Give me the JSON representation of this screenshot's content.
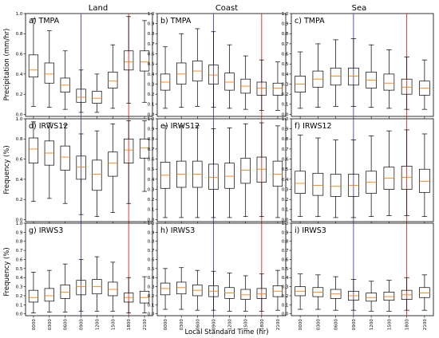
{
  "figure": {
    "column_titles": [
      "Land",
      "Coast",
      "Sea"
    ],
    "xlabel": "Local Standard Time (hr)",
    "row_ylabels": [
      "Precipitation (mm/hr)",
      "Frequency (%)",
      "Frequency (%)"
    ],
    "x_ticks": [
      "0000",
      "0300",
      "0600",
      "0900",
      "1200",
      "1500",
      "1800",
      "2100"
    ],
    "vline_colors": {
      "blue": "#3d47a4",
      "red": "#d62728"
    },
    "median_color": "#ff7f0e",
    "box_color": "#000000"
  },
  "chart_data": [
    {
      "type": "box",
      "title": "a) TMPA",
      "ylim": [
        -0.02,
        1.0
      ],
      "yticks": [
        0.0,
        0.2,
        0.4,
        0.6,
        0.8,
        1.0
      ],
      "yticklabels": [
        "0.0",
        "0.2",
        "0.4",
        "0.6",
        "0.8",
        "1.0"
      ],
      "categories": [
        "0000",
        "0300",
        "0600",
        "0900",
        "1200",
        "1500",
        "1800",
        "2100"
      ],
      "vlines": [
        {
          "x": "0900",
          "color": "blue"
        },
        {
          "x": "1800",
          "color": "red"
        }
      ],
      "boxes": [
        {
          "whislo": 0.08,
          "q1": 0.37,
          "med": 0.44,
          "q3": 0.59,
          "whishi": 0.95
        },
        {
          "whislo": 0.07,
          "q1": 0.31,
          "med": 0.4,
          "q3": 0.51,
          "whishi": 0.83
        },
        {
          "whislo": 0.05,
          "q1": 0.22,
          "med": 0.29,
          "q3": 0.36,
          "whishi": 0.63
        },
        {
          "whislo": 0.02,
          "q1": 0.12,
          "med": 0.17,
          "q3": 0.25,
          "whishi": 0.44
        },
        {
          "whislo": 0.02,
          "q1": 0.11,
          "med": 0.16,
          "q3": 0.23,
          "whishi": 0.4
        },
        {
          "whislo": 0.06,
          "q1": 0.26,
          "med": 0.33,
          "q3": 0.42,
          "whishi": 0.69
        },
        {
          "whislo": 0.11,
          "q1": 0.44,
          "med": 0.52,
          "q3": 0.63,
          "whishi": 0.97
        },
        {
          "whislo": 0.12,
          "q1": 0.43,
          "med": 0.52,
          "q3": 0.63,
          "whishi": 0.93
        }
      ]
    },
    {
      "type": "box",
      "title": "b) TMPA",
      "ylim": [
        -0.02,
        1.0
      ],
      "yticks": [
        0.0,
        0.1,
        0.2,
        0.3,
        0.4,
        0.5,
        0.6,
        0.7,
        0.8,
        0.9,
        1.0
      ],
      "yticklabels": [
        "0.0",
        "0.1",
        "0.2",
        "0.3",
        "0.4",
        "0.5",
        "0.6",
        "0.7",
        "0.8",
        "0.9",
        "1.0"
      ],
      "categories": [
        "0000",
        "0300",
        "0600",
        "0900",
        "1200",
        "1500",
        "1800",
        "2100"
      ],
      "vlines": [
        {
          "x": "0900",
          "color": "blue"
        },
        {
          "x": "1800",
          "color": "red"
        }
      ],
      "boxes": [
        {
          "whislo": 0.06,
          "q1": 0.24,
          "med": 0.32,
          "q3": 0.4,
          "whishi": 0.67
        },
        {
          "whislo": 0.07,
          "q1": 0.3,
          "med": 0.4,
          "q3": 0.51,
          "whishi": 0.8
        },
        {
          "whislo": 0.08,
          "q1": 0.33,
          "med": 0.43,
          "q3": 0.53,
          "whishi": 0.85
        },
        {
          "whislo": 0.07,
          "q1": 0.3,
          "med": 0.39,
          "q3": 0.49,
          "whishi": 0.82
        },
        {
          "whislo": 0.06,
          "q1": 0.24,
          "med": 0.32,
          "q3": 0.41,
          "whishi": 0.69
        },
        {
          "whislo": 0.05,
          "q1": 0.21,
          "med": 0.28,
          "q3": 0.35,
          "whishi": 0.58
        },
        {
          "whislo": 0.04,
          "q1": 0.19,
          "med": 0.26,
          "q3": 0.32,
          "whishi": 0.54
        },
        {
          "whislo": 0.04,
          "q1": 0.19,
          "med": 0.26,
          "q3": 0.31,
          "whishi": 0.52
        }
      ]
    },
    {
      "type": "box",
      "title": "c) TMPA",
      "ylim": [
        -0.02,
        1.0
      ],
      "yticks": [
        0.0,
        0.1,
        0.2,
        0.3,
        0.4,
        0.5,
        0.6,
        0.7,
        0.8,
        0.9,
        1.0
      ],
      "yticklabels": [
        "0.0",
        "0.1",
        "0.2",
        "0.3",
        "0.4",
        "0.5",
        "0.6",
        "0.7",
        "0.8",
        "0.9",
        "1.0"
      ],
      "categories": [
        "0000",
        "0300",
        "0600",
        "0900",
        "1200",
        "1500",
        "1800",
        "2100"
      ],
      "vlines": [
        {
          "x": "0900",
          "color": "blue"
        },
        {
          "x": "1800",
          "color": "red"
        }
      ],
      "boxes": [
        {
          "whislo": 0.06,
          "q1": 0.22,
          "med": 0.3,
          "q3": 0.38,
          "whishi": 0.62
        },
        {
          "whislo": 0.07,
          "q1": 0.27,
          "med": 0.35,
          "q3": 0.43,
          "whishi": 0.7
        },
        {
          "whislo": 0.08,
          "q1": 0.29,
          "med": 0.38,
          "q3": 0.46,
          "whishi": 0.74
        },
        {
          "whislo": 0.08,
          "q1": 0.29,
          "med": 0.38,
          "q3": 0.46,
          "whishi": 0.75
        },
        {
          "whislo": 0.07,
          "q1": 0.26,
          "med": 0.34,
          "q3": 0.42,
          "whishi": 0.69
        },
        {
          "whislo": 0.06,
          "q1": 0.24,
          "med": 0.31,
          "q3": 0.4,
          "whishi": 0.64
        },
        {
          "whislo": 0.05,
          "q1": 0.2,
          "med": 0.27,
          "q3": 0.35,
          "whishi": 0.57
        },
        {
          "whislo": 0.05,
          "q1": 0.19,
          "med": 0.26,
          "q3": 0.33,
          "whishi": 0.54
        }
      ]
    },
    {
      "type": "box",
      "title": "d) IRWS12",
      "ylim": [
        -0.02,
        1.0
      ],
      "yticks": [
        0.0,
        0.2,
        0.4,
        0.6,
        0.8,
        1.0
      ],
      "yticklabels": [
        "0.0",
        "0.2",
        "0.4",
        "0.6",
        "0.8",
        "1.0"
      ],
      "categories": [
        "0000",
        "0300",
        "0600",
        "0900",
        "1200",
        "1500",
        "1800",
        "2100"
      ],
      "vlines": [
        {
          "x": "0900",
          "color": "blue"
        },
        {
          "x": "1800",
          "color": "red"
        }
      ],
      "boxes": [
        {
          "whislo": 0.18,
          "q1": 0.56,
          "med": 0.7,
          "q3": 0.81,
          "whishi": 0.97
        },
        {
          "whislo": 0.21,
          "q1": 0.54,
          "med": 0.66,
          "q3": 0.78,
          "whishi": 0.96
        },
        {
          "whislo": 0.16,
          "q1": 0.49,
          "med": 0.62,
          "q3": 0.73,
          "whishi": 0.94
        },
        {
          "whislo": 0.05,
          "q1": 0.4,
          "med": 0.52,
          "q3": 0.63,
          "whishi": 0.85
        },
        {
          "whislo": 0.03,
          "q1": 0.29,
          "med": 0.45,
          "q3": 0.59,
          "whishi": 0.88
        },
        {
          "whislo": 0.07,
          "q1": 0.43,
          "med": 0.56,
          "q3": 0.67,
          "whishi": 0.95
        },
        {
          "whislo": 0.16,
          "q1": 0.56,
          "med": 0.69,
          "q3": 0.8,
          "whishi": 0.98
        },
        {
          "whislo": 0.28,
          "q1": 0.61,
          "med": 0.71,
          "q3": 0.8,
          "whishi": 0.98
        }
      ]
    },
    {
      "type": "box",
      "title": "e) IRWS12",
      "ylim": [
        -0.02,
        1.0
      ],
      "yticks": [
        0.0,
        0.1,
        0.2,
        0.3,
        0.4,
        0.5,
        0.6,
        0.7,
        0.8,
        0.9,
        1.0
      ],
      "yticklabels": [
        "0.0",
        "0.1",
        "0.2",
        "0.3",
        "0.4",
        "0.5",
        "0.6",
        "0.7",
        "0.8",
        "0.9",
        "1.0"
      ],
      "categories": [
        "0000",
        "0300",
        "0600",
        "0900",
        "1200",
        "1500",
        "1800",
        "2100"
      ],
      "vlines": [
        {
          "x": "0900",
          "color": "blue"
        },
        {
          "x": "1800",
          "color": "red"
        }
      ],
      "boxes": [
        {
          "whislo": 0.02,
          "q1": 0.31,
          "med": 0.44,
          "q3": 0.57,
          "whishi": 0.93
        },
        {
          "whislo": 0.02,
          "q1": 0.32,
          "med": 0.45,
          "q3": 0.58,
          "whishi": 0.93
        },
        {
          "whislo": 0.02,
          "q1": 0.32,
          "med": 0.45,
          "q3": 0.58,
          "whishi": 0.93
        },
        {
          "whislo": 0.02,
          "q1": 0.3,
          "med": 0.42,
          "q3": 0.55,
          "whishi": 0.9
        },
        {
          "whislo": 0.02,
          "q1": 0.31,
          "med": 0.43,
          "q3": 0.56,
          "whishi": 0.91
        },
        {
          "whislo": 0.03,
          "q1": 0.36,
          "med": 0.49,
          "q3": 0.61,
          "whishi": 0.95
        },
        {
          "whislo": 0.03,
          "q1": 0.37,
          "med": 0.5,
          "q3": 0.62,
          "whishi": 0.96
        },
        {
          "whislo": 0.02,
          "q1": 0.33,
          "med": 0.45,
          "q3": 0.58,
          "whishi": 0.93
        }
      ]
    },
    {
      "type": "box",
      "title": "f) IRWS12",
      "ylim": [
        -0.02,
        1.0
      ],
      "yticks": [
        0.0,
        0.1,
        0.2,
        0.3,
        0.4,
        0.5,
        0.6,
        0.7,
        0.8,
        0.9,
        1.0
      ],
      "yticklabels": [
        "0.0",
        "0.1",
        "0.2",
        "0.3",
        "0.4",
        "0.5",
        "0.6",
        "0.7",
        "0.8",
        "0.9",
        "1.0"
      ],
      "categories": [
        "0000",
        "0300",
        "0600",
        "0900",
        "1200",
        "1500",
        "1800",
        "2100"
      ],
      "vlines": [
        {
          "x": "0900",
          "color": "blue"
        },
        {
          "x": "1800",
          "color": "red"
        }
      ],
      "boxes": [
        {
          "whislo": 0.03,
          "q1": 0.26,
          "med": 0.36,
          "q3": 0.48,
          "whishi": 0.84
        },
        {
          "whislo": 0.03,
          "q1": 0.24,
          "med": 0.34,
          "q3": 0.46,
          "whishi": 0.81
        },
        {
          "whislo": 0.02,
          "q1": 0.23,
          "med": 0.33,
          "q3": 0.45,
          "whishi": 0.79
        },
        {
          "whislo": 0.02,
          "q1": 0.23,
          "med": 0.34,
          "q3": 0.45,
          "whishi": 0.79
        },
        {
          "whislo": 0.03,
          "q1": 0.26,
          "med": 0.37,
          "q3": 0.48,
          "whishi": 0.83
        },
        {
          "whislo": 0.04,
          "q1": 0.3,
          "med": 0.41,
          "q3": 0.52,
          "whishi": 0.88
        },
        {
          "whislo": 0.04,
          "q1": 0.3,
          "med": 0.42,
          "q3": 0.53,
          "whishi": 0.89
        },
        {
          "whislo": 0.03,
          "q1": 0.27,
          "med": 0.38,
          "q3": 0.5,
          "whishi": 0.85
        }
      ]
    },
    {
      "type": "box",
      "title": "g) IRWS3",
      "ylim": [
        -0.02,
        1.0
      ],
      "yticks": [
        0.0,
        0.1,
        0.2,
        0.3,
        0.4,
        0.5,
        0.6,
        0.7,
        0.8,
        0.9,
        1.0
      ],
      "yticklabels": [
        "0.0",
        "0.1",
        "0.2",
        "0.3",
        "0.4",
        "0.5",
        "0.6",
        "0.7",
        "0.8",
        "0.9",
        "1.0"
      ],
      "categories": [
        "0000",
        "0300",
        "0600",
        "0900",
        "1200",
        "1500",
        "1800",
        "2100"
      ],
      "vlines": [
        {
          "x": "0900",
          "color": "blue"
        },
        {
          "x": "1800",
          "color": "red"
        }
      ],
      "boxes": [
        {
          "whislo": 0.01,
          "q1": 0.13,
          "med": 0.18,
          "q3": 0.26,
          "whishi": 0.46
        },
        {
          "whislo": 0.02,
          "q1": 0.14,
          "med": 0.2,
          "q3": 0.28,
          "whishi": 0.48
        },
        {
          "whislo": 0.02,
          "q1": 0.17,
          "med": 0.24,
          "q3": 0.32,
          "whishi": 0.55
        },
        {
          "whislo": 0.03,
          "q1": 0.21,
          "med": 0.3,
          "q3": 0.37,
          "whishi": 0.6
        },
        {
          "whislo": 0.03,
          "q1": 0.22,
          "med": 0.3,
          "q3": 0.38,
          "whishi": 0.63
        },
        {
          "whislo": 0.03,
          "q1": 0.2,
          "med": 0.27,
          "q3": 0.35,
          "whishi": 0.57
        },
        {
          "whislo": 0.01,
          "q1": 0.13,
          "med": 0.18,
          "q3": 0.23,
          "whishi": 0.4
        },
        {
          "whislo": 0.01,
          "q1": 0.12,
          "med": 0.18,
          "q3": 0.25,
          "whishi": 0.41
        }
      ]
    },
    {
      "type": "box",
      "title": "h) IRWS3",
      "ylim": [
        -0.02,
        1.0
      ],
      "yticks": [
        0.0,
        0.1,
        0.2,
        0.3,
        0.4,
        0.5,
        0.6,
        0.7,
        0.8,
        0.9,
        1.0
      ],
      "yticklabels": [
        "0.0",
        "0.1",
        "0.2",
        "0.3",
        "0.4",
        "0.5",
        "0.6",
        "0.7",
        "0.8",
        "0.9",
        "1.0"
      ],
      "categories": [
        "0000",
        "0300",
        "0600",
        "0900",
        "1200",
        "1500",
        "1800",
        "2100"
      ],
      "vlines": [
        {
          "x": "0900",
          "color": "blue"
        },
        {
          "x": "1800",
          "color": "red"
        }
      ],
      "boxes": [
        {
          "whislo": 0.05,
          "q1": 0.21,
          "med": 0.28,
          "q3": 0.34,
          "whishi": 0.5
        },
        {
          "whislo": 0.05,
          "q1": 0.22,
          "med": 0.29,
          "q3": 0.35,
          "whishi": 0.51
        },
        {
          "whislo": 0.04,
          "q1": 0.2,
          "med": 0.26,
          "q3": 0.32,
          "whishi": 0.48
        },
        {
          "whislo": 0.04,
          "q1": 0.19,
          "med": 0.25,
          "q3": 0.31,
          "whishi": 0.47
        },
        {
          "whislo": 0.03,
          "q1": 0.17,
          "med": 0.23,
          "q3": 0.29,
          "whishi": 0.45
        },
        {
          "whislo": 0.03,
          "q1": 0.16,
          "med": 0.21,
          "q3": 0.27,
          "whishi": 0.42
        },
        {
          "whislo": 0.03,
          "q1": 0.17,
          "med": 0.22,
          "q3": 0.28,
          "whishi": 0.44
        },
        {
          "whislo": 0.04,
          "q1": 0.19,
          "med": 0.25,
          "q3": 0.31,
          "whishi": 0.48
        }
      ]
    },
    {
      "type": "box",
      "title": "i) IRWS3",
      "ylim": [
        -0.02,
        1.0
      ],
      "yticks": [
        0.0,
        0.1,
        0.2,
        0.3,
        0.4,
        0.5,
        0.6,
        0.7,
        0.8,
        0.9,
        1.0
      ],
      "yticklabels": [
        "0.0",
        "0.1",
        "0.2",
        "0.3",
        "0.4",
        "0.5",
        "0.6",
        "0.7",
        "0.8",
        "0.9",
        "1.0"
      ],
      "categories": [
        "0000",
        "0300",
        "0600",
        "0900",
        "1200",
        "1500",
        "1800",
        "2100"
      ],
      "vlines": [
        {
          "x": "0900",
          "color": "blue"
        },
        {
          "x": "1800",
          "color": "red"
        }
      ],
      "boxes": [
        {
          "whislo": 0.05,
          "q1": 0.2,
          "med": 0.25,
          "q3": 0.3,
          "whishi": 0.44
        },
        {
          "whislo": 0.05,
          "q1": 0.19,
          "med": 0.24,
          "q3": 0.29,
          "whishi": 0.43
        },
        {
          "whislo": 0.04,
          "q1": 0.17,
          "med": 0.22,
          "q3": 0.27,
          "whishi": 0.41
        },
        {
          "whislo": 0.04,
          "q1": 0.15,
          "med": 0.2,
          "q3": 0.25,
          "whishi": 0.38
        },
        {
          "whislo": 0.03,
          "q1": 0.14,
          "med": 0.18,
          "q3": 0.23,
          "whishi": 0.36
        },
        {
          "whislo": 0.03,
          "q1": 0.15,
          "med": 0.19,
          "q3": 0.24,
          "whishi": 0.37
        },
        {
          "whislo": 0.04,
          "q1": 0.16,
          "med": 0.21,
          "q3": 0.26,
          "whishi": 0.4
        },
        {
          "whislo": 0.04,
          "q1": 0.18,
          "med": 0.23,
          "q3": 0.29,
          "whishi": 0.43
        }
      ]
    }
  ]
}
